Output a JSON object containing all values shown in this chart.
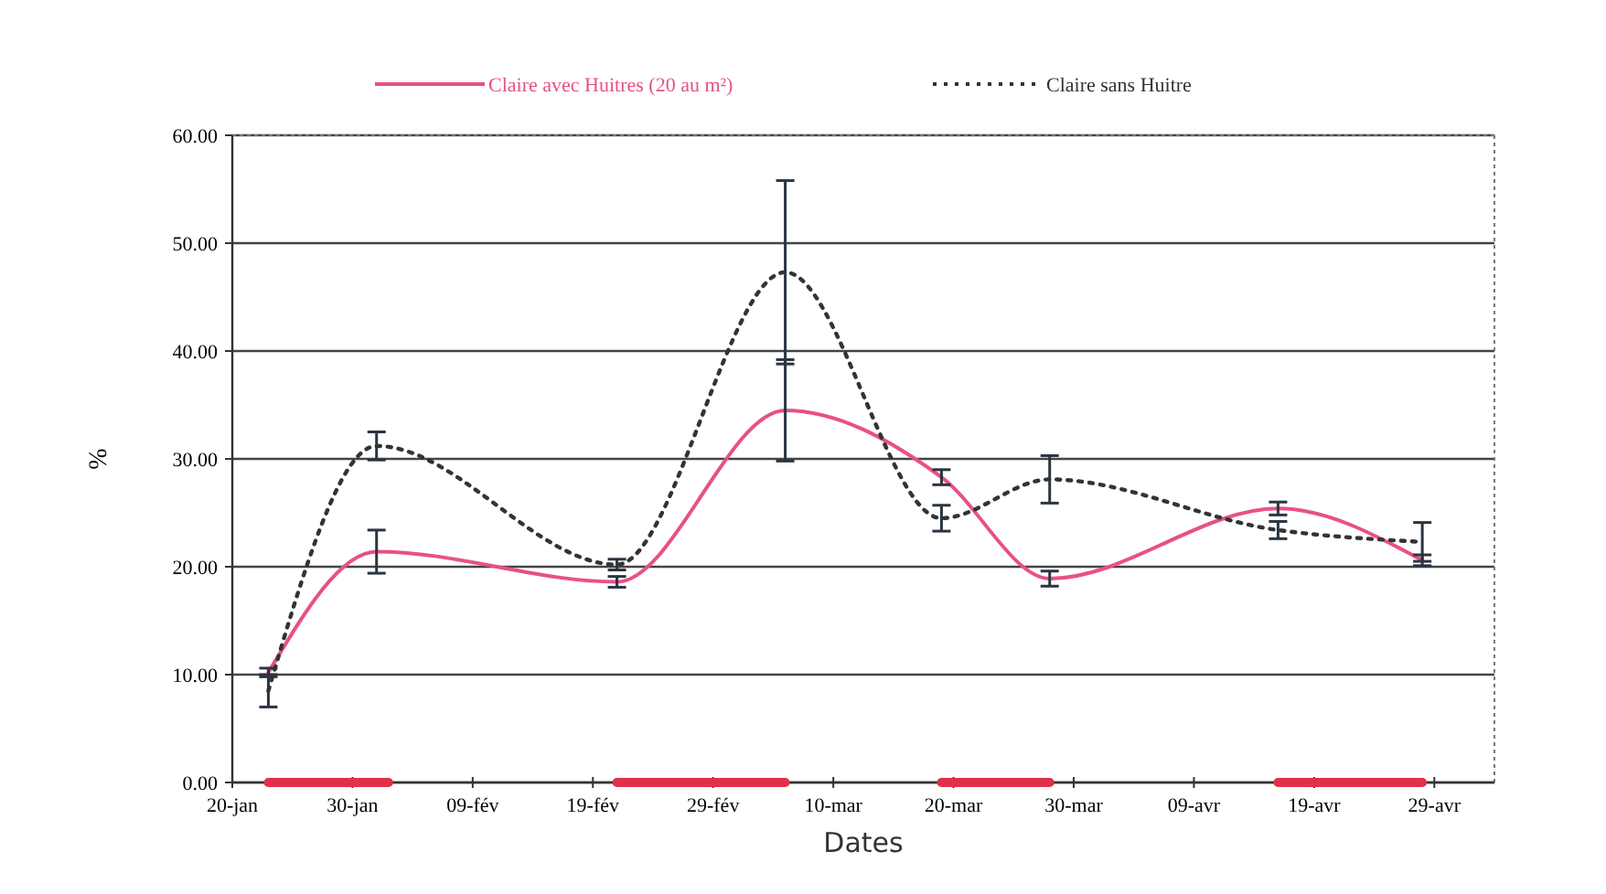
{
  "chart_data": {
    "type": "line",
    "xlabel": "Dates",
    "ylabel": "%",
    "x": [
      "--01-23",
      "--02-01",
      "--02-21",
      "--03-06",
      "--03-19",
      "--03-28",
      "--04-16",
      "--04-28"
    ],
    "series": [
      {
        "name": "Claire avec Huitres (20 au m²)",
        "color": "#e8508a",
        "line_style": "solid",
        "values": [
          10.2,
          21.4,
          18.6,
          34.5,
          28.3,
          18.9,
          25.4,
          20.6
        ],
        "errors": [
          0.4,
          2.0,
          0.5,
          4.7,
          0.7,
          0.7,
          0.6,
          0.5
        ]
      },
      {
        "name": "Claire sans Huitre",
        "color": "#333333",
        "line_style": "dotted",
        "values": [
          8.5,
          31.2,
          20.2,
          47.3,
          24.5,
          28.1,
          23.4,
          22.3
        ],
        "errors": [
          1.5,
          1.3,
          0.5,
          8.5,
          1.2,
          2.2,
          0.8,
          1.8
        ]
      },
      {
        "color": "#e0304a",
        "line_style": "solid",
        "x": [
          "--01-23",
          "--02-02",
          "--02-10",
          "--02-21",
          "--03-06",
          "--03-12",
          "--03-19",
          "--03-28",
          "--04-05",
          "--04-16",
          "--04-28"
        ],
        "values": [
          0,
          0,
          null,
          0,
          0,
          null,
          0,
          0,
          null,
          0,
          0
        ]
      }
    ],
    "xlim": [
      "--01-20",
      "--05-04"
    ],
    "xticks": [
      {
        "value": "--01-20",
        "label": "20-jan"
      },
      {
        "value": "--01-30",
        "label": "30-jan"
      },
      {
        "value": "--02-09",
        "label": "09-fév"
      },
      {
        "value": "--02-19",
        "label": "19-fév"
      },
      {
        "value": "--02-29",
        "label": "29-fév"
      },
      {
        "value": "--03-10",
        "label": "10-mar"
      },
      {
        "value": "--03-20",
        "label": "20-mar"
      },
      {
        "value": "--03-30",
        "label": "30-mar"
      },
      {
        "value": "--04-09",
        "label": "09-avr"
      },
      {
        "value": "--04-19",
        "label": "19-avr"
      },
      {
        "value": "--04-29",
        "label": "29-avr"
      }
    ],
    "ylim": [
      0,
      60
    ],
    "yticks": [
      {
        "value": 0,
        "label": "0.00"
      },
      {
        "value": 10,
        "label": "10.00"
      },
      {
        "value": 20,
        "label": "20.00"
      },
      {
        "value": 30,
        "label": "30.00"
      },
      {
        "value": 40,
        "label": "40.00"
      },
      {
        "value": 50,
        "label": "50.00"
      },
      {
        "value": 60,
        "label": "60.00"
      }
    ],
    "grid": "y",
    "legend": "top",
    "marker": "none"
  }
}
